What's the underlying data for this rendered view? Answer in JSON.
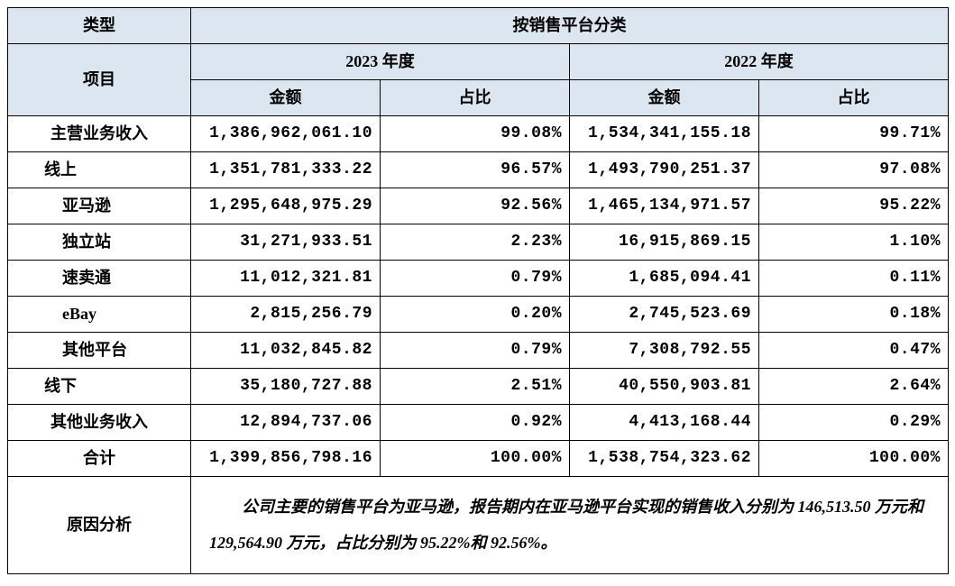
{
  "headers": {
    "type": "类型",
    "category": "按销售平台分类",
    "item": "项目",
    "year2023": "2023 年度",
    "year2022": "2022 年度",
    "amount": "金额",
    "ratio": "占比"
  },
  "rows": [
    {
      "label": "主营业务收入",
      "indent": 0,
      "a2023": "1,386,962,061.10",
      "r2023": "99.08%",
      "a2022": "1,534,341,155.18",
      "r2022": "99.71%"
    },
    {
      "label": "线上",
      "indent": 1,
      "a2023": "1,351,781,333.22",
      "r2023": "96.57%",
      "a2022": "1,493,790,251.37",
      "r2022": "97.08%"
    },
    {
      "label": "亚马逊",
      "indent": 2,
      "a2023": "1,295,648,975.29",
      "r2023": "92.56%",
      "a2022": "1,465,134,971.57",
      "r2022": "95.22%"
    },
    {
      "label": "独立站",
      "indent": 2,
      "a2023": "31,271,933.51",
      "r2023": "2.23%",
      "a2022": "16,915,869.15",
      "r2022": "1.10%"
    },
    {
      "label": "速卖通",
      "indent": 2,
      "a2023": "11,012,321.81",
      "r2023": "0.79%",
      "a2022": "1,685,094.41",
      "r2022": "0.11%"
    },
    {
      "label": "eBay",
      "indent": 2,
      "a2023": "2,815,256.79",
      "r2023": "0.20%",
      "a2022": "2,745,523.69",
      "r2022": "0.18%"
    },
    {
      "label": "其他平台",
      "indent": 2,
      "a2023": "11,032,845.82",
      "r2023": "0.79%",
      "a2022": "7,308,792.55",
      "r2022": "0.47%"
    },
    {
      "label": "线下",
      "indent": 1,
      "a2023": "35,180,727.88",
      "r2023": "2.51%",
      "a2022": "40,550,903.81",
      "r2022": "2.64%"
    },
    {
      "label": "其他业务收入",
      "indent": 0,
      "a2023": "12,894,737.06",
      "r2023": "0.92%",
      "a2022": "4,413,168.44",
      "r2022": "0.29%"
    },
    {
      "label": "合计",
      "indent": 0,
      "a2023": "1,399,856,798.16",
      "r2023": "100.00%",
      "a2022": "1,538,754,323.62",
      "r2022": "100.00%"
    }
  ],
  "analysis": {
    "label": "原因分析",
    "text": "公司主要的销售平台为亚马逊，报告期内在亚马逊平台实现的销售收入分别为 146,513.50 万元和 129,564.90 万元，占比分别为 95.22%和 92.56%。"
  },
  "style": {
    "header_bg": "#dce6f1",
    "border_color": "#000000",
    "text_color": "#000000"
  }
}
